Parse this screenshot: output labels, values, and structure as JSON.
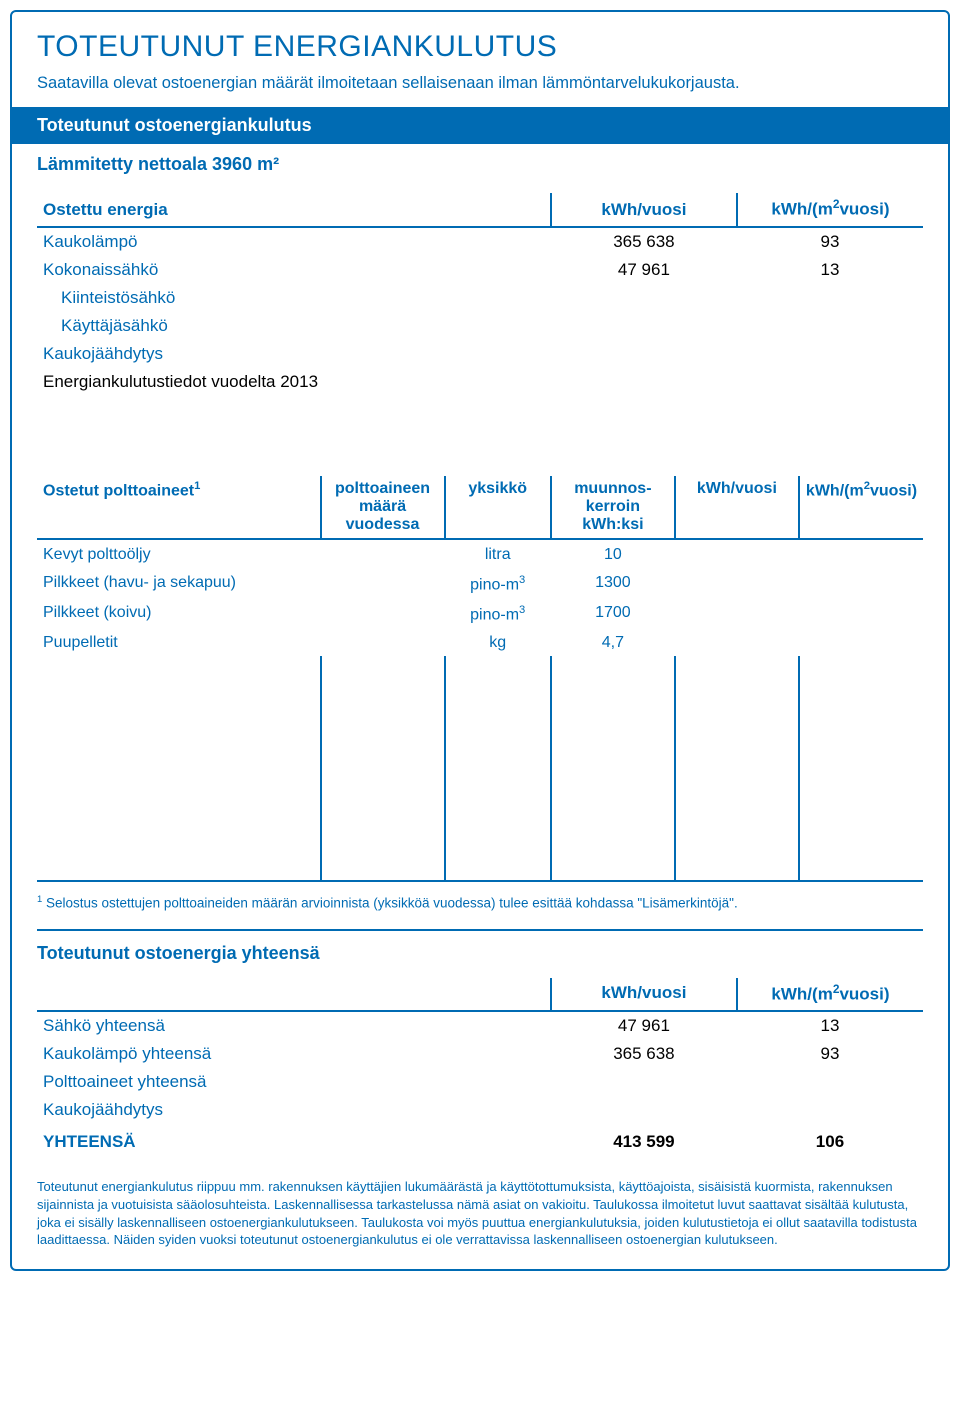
{
  "colors": {
    "accent": "#006bb3",
    "text_black": "#000000",
    "background": "#ffffff"
  },
  "header": {
    "title": "TOTEUTUNUT ENERGIANKULUTUS",
    "subtitle": "Saatavilla olevat ostoenergian määrät ilmoitetaan sellaisenaan ilman lämmöntarvelukukorjausta.",
    "band": "Toteutunut ostoenergiankulutus",
    "net_area": "Lämmitetty nettoala 3960 m²"
  },
  "purchased_energy": {
    "row_header": "Ostettu energia",
    "col_kwh": "kWh/vuosi",
    "col_kwhm2_prefix": "kWh/(m",
    "col_kwhm2_sup": "2",
    "col_kwhm2_suffix": "vuosi)",
    "rows": [
      {
        "label": "Kaukolämpö",
        "kwh": "365 638",
        "kwhm2": "93"
      },
      {
        "label": "Kokonaissähkö",
        "kwh": "47 961",
        "kwhm2": "13"
      },
      {
        "label": "Kiinteistösähkö",
        "indent": true,
        "kwh": "",
        "kwhm2": ""
      },
      {
        "label": "Käyttäjäsähkö",
        "indent": true,
        "kwh": "",
        "kwhm2": ""
      },
      {
        "label": "Kaukojäähdytys",
        "kwh": "",
        "kwhm2": ""
      }
    ],
    "note": "Energiankulutustiedot vuodelta 2013"
  },
  "fuels": {
    "header_label_prefix": "Ostetut polttoaineet",
    "header_label_sup": "1",
    "header_amount_l1": "polttoaineen",
    "header_amount_l2": "määrä",
    "header_amount_l3": "vuodessa",
    "header_unit": "yksikkö",
    "header_conv_l1": "muunnos-",
    "header_conv_l2": "kerroin",
    "header_conv_l3": "kWh:ksi",
    "header_kwh": "kWh/vuosi",
    "header_kwhm2_prefix": "kWh/(m",
    "header_kwhm2_sup": "2",
    "header_kwhm2_suffix": "vuosi)",
    "rows": [
      {
        "label": "Kevyt polttoöljy",
        "unit": "litra",
        "unit_sup": "",
        "conv": "10"
      },
      {
        "label": "Pilkkeet (havu- ja sekapuu)",
        "unit": "pino-m",
        "unit_sup": "3",
        "conv": "1300"
      },
      {
        "label": "Pilkkeet (koivu)",
        "unit": "pino-m",
        "unit_sup": "3",
        "conv": "1700"
      },
      {
        "label": "Puupelletit",
        "unit": "kg",
        "unit_sup": "",
        "conv": "4,7"
      }
    ],
    "footnote_sup": "1",
    "footnote": " Selostus ostettujen polttoaineiden määrän arvioinnista (yksikköä vuodessa) tulee esittää kohdassa \"Lisämerkintöjä\"."
  },
  "totals": {
    "title": "Toteutunut ostoenergia yhteensä",
    "col_kwh": "kWh/vuosi",
    "col_kwhm2_prefix": "kWh/(m",
    "col_kwhm2_sup": "2",
    "col_kwhm2_suffix": "vuosi)",
    "rows": [
      {
        "label": "Sähkö yhteensä",
        "kwh": "47 961",
        "kwhm2": "13"
      },
      {
        "label": "Kaukolämpö yhteensä",
        "kwh": "365 638",
        "kwhm2": "93"
      },
      {
        "label": "Polttoaineet yhteensä",
        "kwh": "",
        "kwhm2": ""
      },
      {
        "label": "Kaukojäähdytys",
        "kwh": "",
        "kwhm2": ""
      }
    ],
    "total_label": "YHTEENSÄ",
    "total_kwh": "413 599",
    "total_kwhm2": "106"
  },
  "disclaimer": "Toteutunut energiankulutus riippuu mm. rakennuksen käyttäjien lukumäärästä ja käyttötottumuksista, käyttöajoista, sisäisistä kuormista, rakennuksen sijainnista ja vuotuisista sääolosuhteista. Laskennallisessa tarkastelussa nämä asiat on vakioitu. Taulukossa ilmoitetut luvut saattavat sisältää kulutusta, joka ei sisälly laskennalliseen ostoenergiankulutukseen. Taulukosta voi myös puuttua energiankulutuksia, joiden kulutustietoja ei ollut saatavilla todistusta laadittaessa. Näiden syiden vuoksi toteutunut ostoenergiankulutus ei ole verrattavissa laskennalliseen ostoenergian kulutukseen."
}
